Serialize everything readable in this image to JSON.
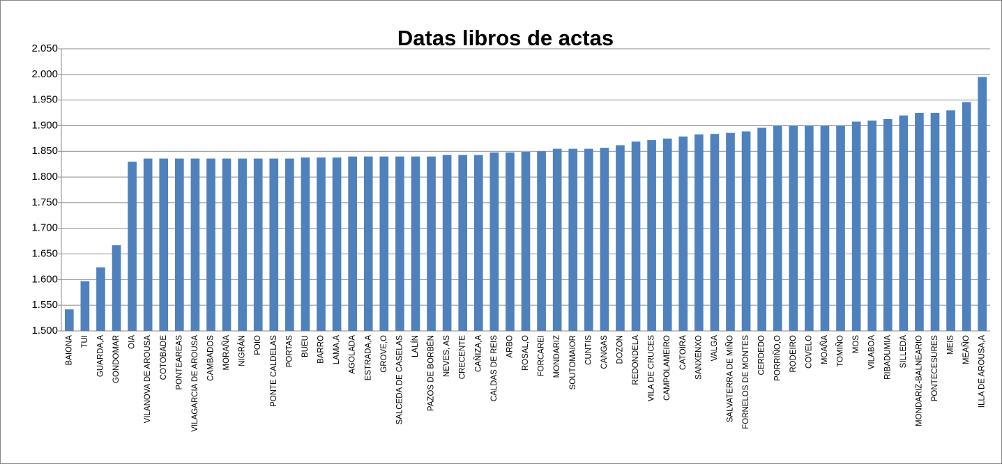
{
  "chart_data": {
    "type": "bar",
    "title": "Datas libros de actas",
    "categories": [
      "BAIONA",
      "TUI",
      "GUARDA,A",
      "GONDOMAR",
      "OIA",
      "VILANOVA DE AROUSA",
      "COTOBADE",
      "PONTEAREAS",
      "VILAGARCIA DE AROUSA",
      "CAMBADOS",
      "MORAÑA",
      "NIGRÁN",
      "POIO",
      "PONTE CALDELAS",
      "PORTAS",
      "BUEU",
      "BARRO",
      "LAMA,A",
      "AGOLADA",
      "ESTRADA,A",
      "GROVE,O",
      "SALCEDA DE CASELAS",
      "LALÍN",
      "PAZOS DE BORBÉN",
      "NEVES, AS",
      "CRECENTE",
      "CAÑIZA,A",
      "CALDAS DE REIS",
      "ARBO",
      "ROSAL,O",
      "FORCAREI",
      "MONDARIZ",
      "SOUTOMAIOR",
      "CUNTIS",
      "CANGAS",
      "DOZON",
      "REDONDELA",
      "VILA DE CRUCES",
      "CAMPOLAMEIRO",
      "CATOIRA",
      "SANXENXO",
      "VALGA",
      "SALVATERRA DE MIÑO",
      "FORNELOS DE MONTES",
      "CERDEDO",
      "PORRIÑO,O",
      "RODEIRO",
      "COVELO",
      "MOAÑA",
      "TOMIÑO",
      "MOS",
      "VILABOA",
      "RIBADUMIA",
      "SILLEDA",
      "MONDARIZ-BALNEARIO",
      "PONTECESURES",
      "MEIS",
      "MEAÑO",
      "ILLA DE AROUSA,A"
    ],
    "values": [
      1542,
      1597,
      1624,
      1667,
      1830,
      1836,
      1836,
      1836,
      1836,
      1836,
      1836,
      1836,
      1836,
      1836,
      1836,
      1838,
      1838,
      1838,
      1840,
      1840,
      1840,
      1840,
      1840,
      1840,
      1843,
      1843,
      1843,
      1848,
      1848,
      1849,
      1850,
      1855,
      1855,
      1855,
      1857,
      1862,
      1869,
      1872,
      1875,
      1879,
      1883,
      1884,
      1886,
      1889,
      1896,
      1900,
      1900,
      1900,
      1900,
      1900,
      1908,
      1910,
      1913,
      1920,
      1925,
      1925,
      1930,
      1946,
      1995
    ],
    "color": "#4f81bd",
    "ylim": [
      1500,
      2050
    ],
    "yticks": [
      {
        "value": 1500,
        "label": "1.500"
      },
      {
        "value": 1550,
        "label": "1.550"
      },
      {
        "value": 1600,
        "label": "1.600"
      },
      {
        "value": 1650,
        "label": "1.650"
      },
      {
        "value": 1700,
        "label": "1.700"
      },
      {
        "value": 1750,
        "label": "1.750"
      },
      {
        "value": 1800,
        "label": "1.800"
      },
      {
        "value": 1850,
        "label": "1.850"
      },
      {
        "value": 1900,
        "label": "1.900"
      },
      {
        "value": 1950,
        "label": "1.950"
      },
      {
        "value": 2000,
        "label": "2.000"
      },
      {
        "value": 2050,
        "label": "2.050"
      }
    ],
    "grid": true
  }
}
